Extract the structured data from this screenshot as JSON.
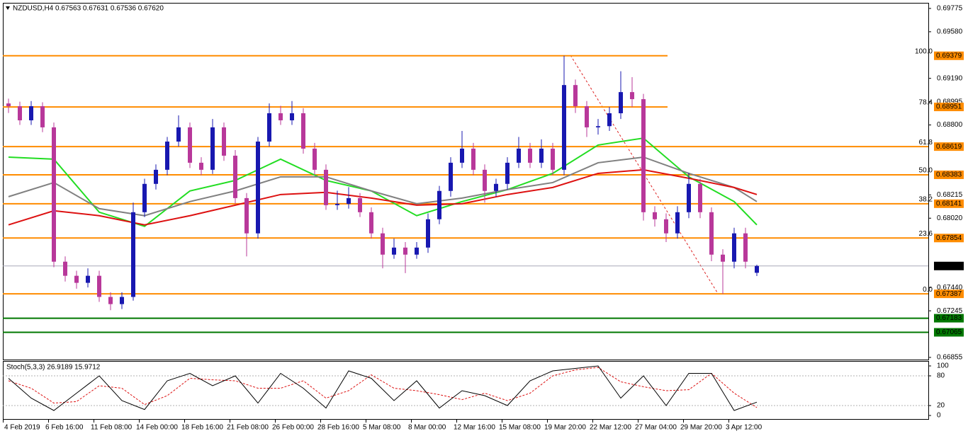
{
  "chart_data": {
    "type": "candlestick",
    "title": "NZDUSD,H4  0.67563 0.67631 0.67536 0.67620",
    "up_color": "#1818b0",
    "down_color": "#b8389a",
    "ylim": [
      0.66837,
      0.69822
    ],
    "yticks": [
      0.69775,
      {
        "value": 0.6958,
        "label": "0.69580"
      },
      {
        "value": 0.6919,
        "label": "0.69190"
      },
      0.68995,
      {
        "value": 0.688,
        "label": "0.68800"
      },
      0.68215,
      {
        "value": 0.6802,
        "label": "0.68020"
      },
      {
        "value": 0.6744,
        "label": "0.67440"
      },
      0.67245,
      0.66855
    ],
    "xlabels": [
      "4 Feb 2019",
      "6 Feb 16:00",
      "11 Feb 08:00",
      "14 Feb 00:00",
      "18 Feb 16:00",
      "21 Feb 08:00",
      "26 Feb 00:00",
      "28 Feb 16:00",
      "5 Mar 08:00",
      "8 Mar 00:00",
      "12 Mar 16:00",
      "15 Mar 08:00",
      "19 Mar 20:00",
      "22 Mar 12:00",
      "27 Mar 04:00",
      "29 Mar 20:00",
      "3 Apr 12:00"
    ],
    "ohlc": [
      [
        0.6898,
        0.6902,
        0.689,
        0.68957
      ],
      [
        0.68957,
        0.68995,
        0.688,
        0.68839
      ],
      [
        0.68839,
        0.69,
        0.688,
        0.68957
      ],
      [
        0.68957,
        0.6899,
        0.6874,
        0.6878
      ],
      [
        0.6878,
        0.6882,
        0.6761,
        0.67656
      ],
      [
        0.67656,
        0.677,
        0.6749,
        0.67538
      ],
      [
        0.67538,
        0.6758,
        0.6743,
        0.67479
      ],
      [
        0.67479,
        0.676,
        0.6744,
        0.67538
      ],
      [
        0.67538,
        0.6758,
        0.6732,
        0.67361
      ],
      [
        0.67361,
        0.674,
        0.6725,
        0.67301
      ],
      [
        0.67301,
        0.674,
        0.6726,
        0.67361
      ],
      [
        0.67361,
        0.6815,
        0.6733,
        0.6807
      ],
      [
        0.6807,
        0.6835,
        0.6803,
        0.68307
      ],
      [
        0.68307,
        0.6847,
        0.6826,
        0.68425
      ],
      [
        0.68425,
        0.687,
        0.6838,
        0.68661
      ],
      [
        0.68661,
        0.6888,
        0.6862,
        0.6878
      ],
      [
        0.6878,
        0.6882,
        0.6844,
        0.68484
      ],
      [
        0.68484,
        0.6853,
        0.6838,
        0.68425
      ],
      [
        0.68425,
        0.6885,
        0.6839,
        0.6878
      ],
      [
        0.6878,
        0.6882,
        0.685,
        0.68543
      ],
      [
        0.68543,
        0.6859,
        0.6814,
        0.68188
      ],
      [
        0.68188,
        0.6823,
        0.677,
        0.67893
      ],
      [
        0.67893,
        0.687,
        0.6785,
        0.68661
      ],
      [
        0.68661,
        0.6898,
        0.6862,
        0.68898
      ],
      [
        0.68898,
        0.6896,
        0.688,
        0.68839
      ],
      [
        0.68839,
        0.69,
        0.688,
        0.68898
      ],
      [
        0.68898,
        0.6894,
        0.6856,
        0.68602
      ],
      [
        0.68602,
        0.6865,
        0.6838,
        0.68425
      ],
      [
        0.68425,
        0.6847,
        0.6809,
        0.68129
      ],
      [
        0.68129,
        0.6825,
        0.6809,
        0.6814
      ],
      [
        0.6814,
        0.6828,
        0.681,
        0.68188
      ],
      [
        0.68188,
        0.6823,
        0.6803,
        0.6807
      ],
      [
        0.6807,
        0.6811,
        0.6785,
        0.67893
      ],
      [
        0.67893,
        0.6794,
        0.676,
        0.67715
      ],
      [
        0.67715,
        0.6785,
        0.6768,
        0.67774
      ],
      [
        0.67774,
        0.6782,
        0.6756,
        0.67715
      ],
      [
        0.67715,
        0.6782,
        0.6768,
        0.67774
      ],
      [
        0.67774,
        0.6806,
        0.6773,
        0.68011
      ],
      [
        0.68011,
        0.6829,
        0.6797,
        0.68248
      ],
      [
        0.68248,
        0.6853,
        0.682,
        0.68484
      ],
      [
        0.68484,
        0.6875,
        0.6844,
        0.68602
      ],
      [
        0.68602,
        0.6865,
        0.6838,
        0.68425
      ],
      [
        0.68425,
        0.6847,
        0.6815,
        0.68248
      ],
      [
        0.68248,
        0.6835,
        0.682,
        0.68307
      ],
      [
        0.68307,
        0.6853,
        0.6826,
        0.68484
      ],
      [
        0.68484,
        0.687,
        0.6844,
        0.68602
      ],
      [
        0.68602,
        0.6865,
        0.6844,
        0.68484
      ],
      [
        0.68484,
        0.6868,
        0.6844,
        0.68602
      ],
      [
        0.68602,
        0.6865,
        0.6838,
        0.68425
      ],
      [
        0.68425,
        0.69379,
        0.6838,
        0.69134
      ],
      [
        0.69134,
        0.6918,
        0.689,
        0.68957
      ],
      [
        0.68957,
        0.69,
        0.687,
        0.6878
      ],
      [
        0.6878,
        0.6885,
        0.6872,
        0.6879
      ],
      [
        0.6879,
        0.6895,
        0.6875,
        0.68898
      ],
      [
        0.68898,
        0.6925,
        0.6885,
        0.69075
      ],
      [
        0.69075,
        0.692,
        0.6895,
        0.69016
      ],
      [
        0.69016,
        0.6906,
        0.68,
        0.6807
      ],
      [
        0.6807,
        0.6812,
        0.6795,
        0.68011
      ],
      [
        0.68011,
        0.6806,
        0.6782,
        0.67893
      ],
      [
        0.67893,
        0.6812,
        0.6785,
        0.6807
      ],
      [
        0.6807,
        0.684,
        0.6802,
        0.68307
      ],
      [
        0.68307,
        0.6835,
        0.6802,
        0.6807
      ],
      [
        0.6807,
        0.6811,
        0.6766,
        0.67715
      ],
      [
        0.67715,
        0.6776,
        0.67387,
        0.67656
      ],
      [
        0.67656,
        0.6794,
        0.676,
        0.67893
      ],
      [
        0.67893,
        0.6794,
        0.676,
        0.67656
      ],
      [
        0.67563,
        0.67631,
        0.67536,
        0.6762
      ]
    ],
    "moving_averages": [
      {
        "color": "#22dd22",
        "index": [
          0,
          4,
          8,
          12,
          16,
          20,
          24,
          28,
          32,
          36,
          40,
          44,
          48,
          52,
          56,
          60,
          64,
          66
        ],
        "values": [
          0.68531,
          0.68514,
          0.6807,
          0.67952,
          0.68248,
          0.68336,
          0.68514,
          0.68336,
          0.68248,
          0.68041,
          0.68159,
          0.68259,
          0.68395,
          0.68632,
          0.6869,
          0.68366,
          0.68159,
          0.67964
        ]
      },
      {
        "color": "#808080",
        "index": [
          0,
          4,
          8,
          12,
          16,
          20,
          24,
          28,
          32,
          36,
          40,
          44,
          48,
          52,
          56,
          60,
          64,
          66
        ],
        "values": [
          0.682,
          0.68318,
          0.681,
          0.68041,
          0.68159,
          0.68248,
          0.68366,
          0.68366,
          0.68248,
          0.68141,
          0.68188,
          0.68259,
          0.68318,
          0.68484,
          0.68531,
          0.68395,
          0.68277,
          0.68159
        ]
      },
      {
        "color": "#dd1111",
        "index": [
          0,
          4,
          8,
          12,
          16,
          20,
          24,
          28,
          32,
          36,
          40,
          44,
          48,
          52,
          56,
          60,
          64,
          66
        ],
        "values": [
          0.67964,
          0.68082,
          0.68041,
          0.67964,
          0.68041,
          0.68129,
          0.68218,
          0.68236,
          0.68188,
          0.68129,
          0.68141,
          0.68218,
          0.68277,
          0.68395,
          0.68425,
          0.68354,
          0.68277,
          0.68218
        ]
      }
    ],
    "fib_color": "#ff8c00",
    "fib_levels": [
      {
        "name": "100.0",
        "value": 0.69379
      },
      {
        "name": "78.4",
        "value": 0.68951
      },
      {
        "name": "61.8",
        "value": 0.68619
      },
      {
        "name": "50.0",
        "value": 0.68383
      },
      {
        "name": "38.2",
        "value": 0.68141
      },
      {
        "name": "23.6",
        "value": 0.67854
      },
      {
        "name": "0.0",
        "value": 0.67387
      }
    ],
    "support_color": "#007800",
    "support_levels": [
      0.67183,
      0.67065
    ],
    "last_price": {
      "value": 0.6762,
      "label": "0.67620"
    },
    "stochastic": {
      "title": "Stoch(5,3,3) 26.9189 15.9712",
      "ylim": [
        0,
        100
      ],
      "yticks": [
        100,
        80,
        20,
        0
      ],
      "levels": [
        80,
        20
      ],
      "index": [
        0,
        2,
        4,
        6,
        8,
        10,
        12,
        14,
        16,
        18,
        20,
        22,
        24,
        26,
        28,
        30,
        32,
        34,
        36,
        38,
        40,
        42,
        44,
        46,
        48,
        50,
        52,
        54,
        56,
        58,
        60,
        62,
        64,
        66
      ],
      "main": [
        75,
        35,
        10,
        45,
        80,
        30,
        12,
        70,
        85,
        60,
        80,
        25,
        85,
        55,
        15,
        90,
        75,
        30,
        70,
        15,
        50,
        40,
        20,
        70,
        90,
        95,
        100,
        35,
        80,
        20,
        85,
        85,
        10,
        26.9189
      ],
      "signal": [
        70,
        55,
        25,
        28,
        60,
        55,
        22,
        40,
        75,
        72,
        70,
        55,
        55,
        70,
        35,
        50,
        82,
        55,
        50,
        42,
        32,
        45,
        30,
        45,
        80,
        92,
        97,
        68,
        58,
        50,
        52,
        85,
        45,
        15.9712
      ]
    }
  }
}
